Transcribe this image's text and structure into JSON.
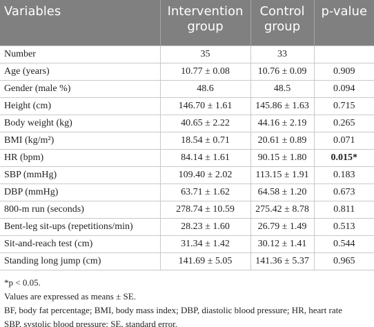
{
  "table": {
    "header": [
      "Variables",
      "Intervention group",
      "Control group",
      "p-value"
    ],
    "rows": [
      [
        "Number",
        "35",
        "33",
        ""
      ],
      [
        "Age (years)",
        "10.77 ± 0.08",
        "10.76 ± 0.09",
        "0.909"
      ],
      [
        "Gender (male %)",
        "48.6",
        "48.5",
        "0.094"
      ],
      [
        "Height (cm)",
        "146.70 ± 1.61",
        "145.86 ± 1.63",
        "0.715"
      ],
      [
        "Body weight (kg)",
        "40.65 ± 2.22",
        "44.16 ± 2.19",
        "0.265"
      ],
      [
        "BMI (kg/m²)",
        "18.54 ± 0.71",
        "20.61 ± 0.89",
        "0.071"
      ],
      [
        "HR (bpm)",
        "84.14 ± 1.61",
        "90.15 ± 1.80",
        "0.015*"
      ],
      [
        "SBP (mmHg)",
        "109.40 ± 2.02",
        "113.15 ± 1.91",
        "0.183"
      ],
      [
        "DBP (mmHg)",
        "63.71 ± 1.62",
        "64.58 ± 1.20",
        "0.673"
      ],
      [
        "800-m run (seconds)",
        "278.74 ± 10.59",
        "275.42 ± 8.78",
        "0.811"
      ],
      [
        "Bent-leg sit-ups (repetitions/min)",
        "28.23 ± 1.60",
        "26.79 ± 1.49",
        "0.513"
      ],
      [
        "Sit-and-reach test (cm)",
        "31.34 ± 1.42",
        "30.12 ± 1.41",
        "0.544"
      ],
      [
        "Standing long jump (cm)",
        "141.69 ± 5.05",
        "141.36 ± 5.37",
        "0.965"
      ]
    ]
  },
  "footnotes": [
    "*p < 0.05.",
    "Values are expressed as means ± SE.",
    "BF, body fat percentage; BMI, body mass index; DBP, diastolic blood pressure; HR, heart rate",
    "SBP, systolic blood pressure; SE, standard error."
  ]
}
